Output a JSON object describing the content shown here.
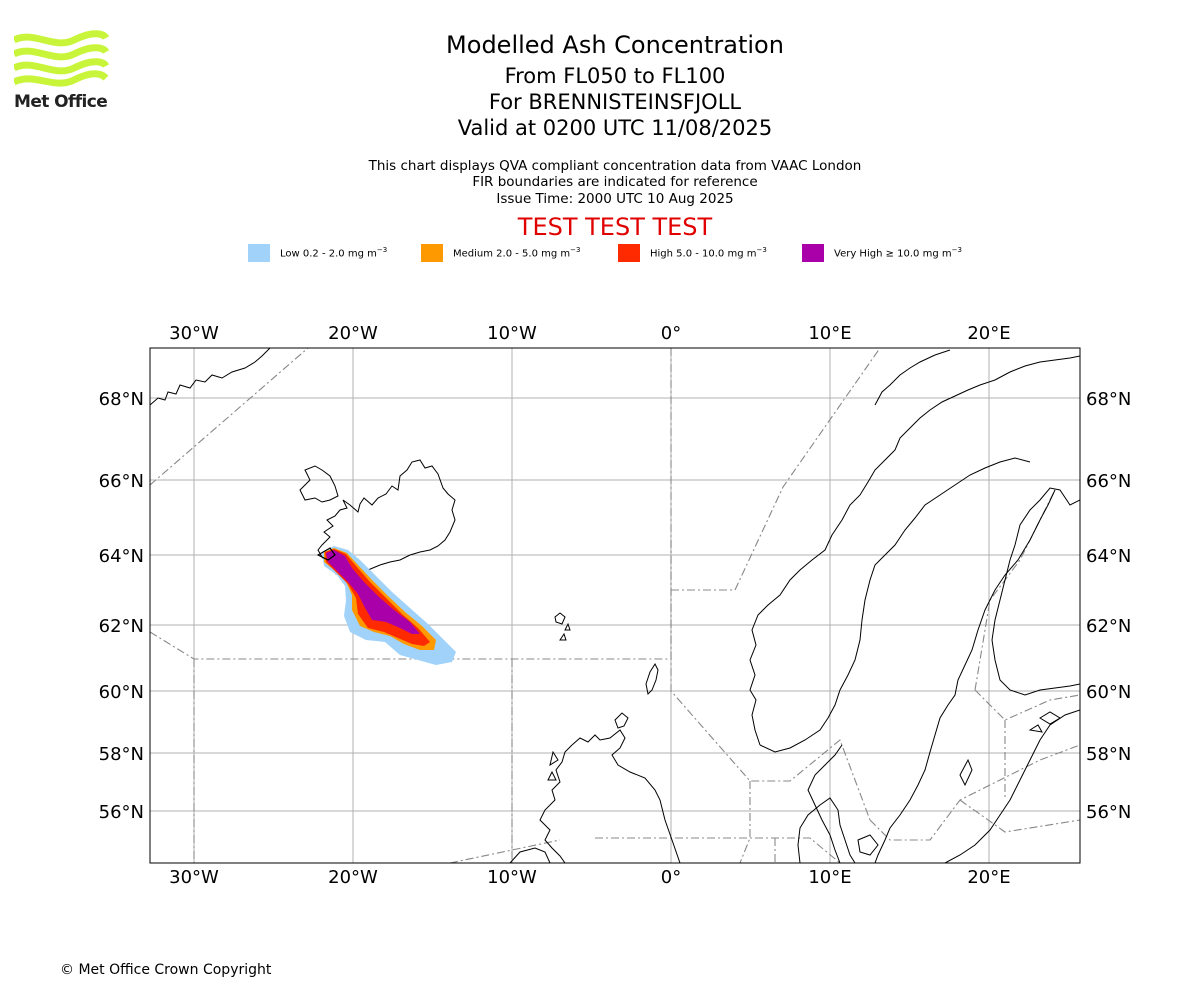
{
  "logo": {
    "text": "Met Office",
    "icon": "met-office-wave-logo",
    "color": "#c8f53a"
  },
  "titles": {
    "main": "Modelled Ash Concentration",
    "levels": "From FL050 to FL100",
    "volcano": "For BRENNISTEINSFJOLL",
    "valid": "Valid at 0200 UTC 11/08/2025"
  },
  "info": {
    "line1": "This chart displays QVA compliant concentration data from VAAC London",
    "line2": "FIR boundaries are indicated for reference",
    "line3": "Issue Time: 2000 UTC 10 Aug 2025"
  },
  "test_banner": "TEST TEST TEST",
  "legend": [
    {
      "prefix": "Low 0.2 - 2.0 mg m",
      "sup": "−3",
      "color": "#a0d2fa"
    },
    {
      "prefix": "Medium 2.0 - 5.0 mg m",
      "sup": "−3",
      "color": "#ff9900"
    },
    {
      "prefix": "High 5.0 - 10.0 mg m",
      "sup": "−3",
      "color": "#ff2a00"
    },
    {
      "prefix": "Very High  ≥  10.0 mg m",
      "sup": "−3",
      "color": "#aa00aa"
    }
  ],
  "map": {
    "lon_labels": [
      "30°W",
      "20°W",
      "10°W",
      "0°",
      "10°E",
      "20°E"
    ],
    "lat_labels": [
      "68°N",
      "66°N",
      "64°N",
      "62°N",
      "60°N",
      "58°N",
      "56°N"
    ],
    "grid": true
  },
  "copyright": "© Met Office Crown Copyright"
}
